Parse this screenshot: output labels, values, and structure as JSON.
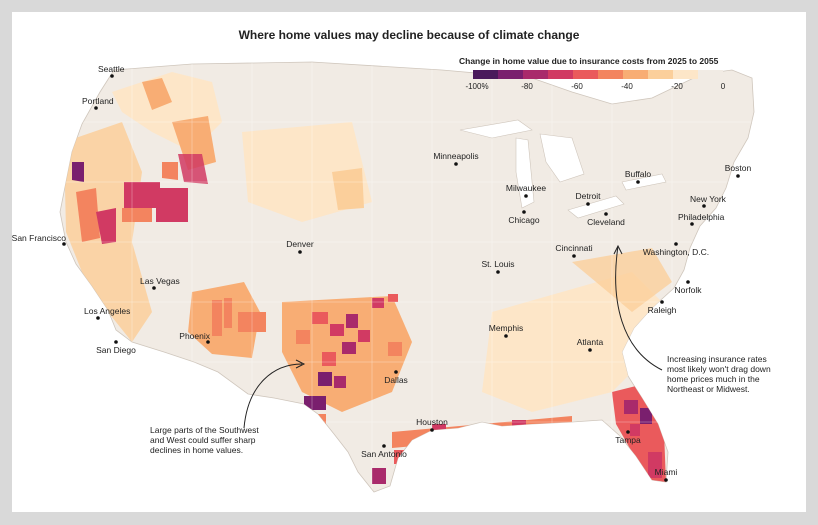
{
  "title": "Where home values may decline because of climate change",
  "legend": {
    "title": "Change in home value due to insurance costs from 2025 to 2055",
    "ticks": [
      "-100%",
      "-80",
      "-60",
      "-40",
      "-20",
      "0"
    ],
    "colors": [
      "#4a1a5c",
      "#7a1f6e",
      "#a92a6b",
      "#d13a63",
      "#ea5a5c",
      "#f3845f",
      "#f8ad74",
      "#fbcf9b",
      "#fde6c8",
      "#f1ebe4"
    ]
  },
  "cities": [
    {
      "name": "Seattle"
    },
    {
      "name": "Portland"
    },
    {
      "name": "San Francisco"
    },
    {
      "name": "Los Angeles"
    },
    {
      "name": "San Diego"
    },
    {
      "name": "Las Vegas"
    },
    {
      "name": "Phoenix"
    },
    {
      "name": "Denver"
    },
    {
      "name": "Dallas"
    },
    {
      "name": "Houston"
    },
    {
      "name": "San Antonio"
    },
    {
      "name": "Minneapolis"
    },
    {
      "name": "Milwaukee"
    },
    {
      "name": "Chicago"
    },
    {
      "name": "St. Louis"
    },
    {
      "name": "Memphis"
    },
    {
      "name": "Atlanta"
    },
    {
      "name": "Detroit"
    },
    {
      "name": "Cleveland"
    },
    {
      "name": "Cincinnati"
    },
    {
      "name": "Buffalo"
    },
    {
      "name": "Boston"
    },
    {
      "name": "New York"
    },
    {
      "name": "Philadelphia"
    },
    {
      "name": "Washington, D.C."
    },
    {
      "name": "Norfolk"
    },
    {
      "name": "Raleigh"
    },
    {
      "name": "Tampa"
    },
    {
      "name": "Miami"
    }
  ],
  "annotations": [
    {
      "lines": [
        "Large parts of the Southwest",
        "and West could suffer sharp",
        "declines in home values."
      ]
    },
    {
      "lines": [
        "Increasing insurance rates",
        "most likely won't drag down",
        "home prices much in the",
        "Northeast or Midwest."
      ]
    }
  ]
}
